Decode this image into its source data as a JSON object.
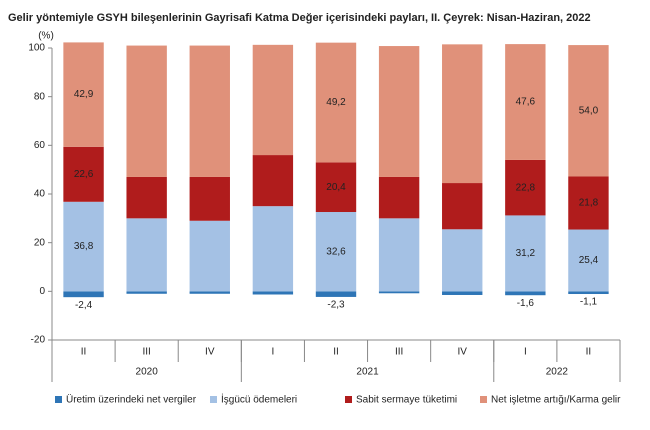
{
  "chart_data": {
    "type": "stacked_bar",
    "title": "Gelir yöntemiyle GSYH bileşenlerinin Gayrisafi Katma Değer içerisindeki payları, II. Çeyrek: Nisan-Haziran, 2022",
    "y_unit_label": "(%)",
    "categories": [
      "II",
      "III",
      "IV",
      "I",
      "II",
      "III",
      "IV",
      "I",
      "II"
    ],
    "category_groups": [
      {
        "label": "2020",
        "size": 3
      },
      {
        "label": "2021",
        "size": 4
      },
      {
        "label": "2022",
        "size": 2
      }
    ],
    "series": [
      {
        "name": "Üretim üzerindeki net vergiler",
        "color": "#2e75b6",
        "values": [
          -2.4,
          -1.0,
          -1.0,
          -1.3,
          -2.3,
          -0.8,
          -1.5,
          -1.6,
          -1.1
        ],
        "value_labels": [
          "-2,4",
          null,
          null,
          null,
          "-2,3",
          null,
          null,
          "-1,6",
          "-1,1"
        ]
      },
      {
        "name": "İşgücü ödemeleri",
        "color": "#a4c1e4",
        "values": [
          36.8,
          30.0,
          29.0,
          35.0,
          32.6,
          30.0,
          25.5,
          31.2,
          25.4
        ],
        "value_labels": [
          "36,8",
          null,
          null,
          null,
          "32,6",
          null,
          null,
          "31,2",
          "25,4"
        ]
      },
      {
        "name": "Sabit sermaye tüketimi",
        "color": "#b01c1c",
        "values": [
          22.6,
          17.0,
          18.0,
          21.0,
          20.4,
          17.0,
          19.0,
          22.8,
          21.8
        ],
        "value_labels": [
          "22,6",
          null,
          null,
          null,
          "20,4",
          null,
          null,
          "22,8",
          "21,8"
        ]
      },
      {
        "name": "Net işletme artığı/Karma gelir",
        "color": "#e0917a",
        "values": [
          42.9,
          54.0,
          54.0,
          45.3,
          49.2,
          53.8,
          57.0,
          47.6,
          54.0
        ],
        "value_labels": [
          "42,9",
          null,
          null,
          null,
          "49,2",
          null,
          null,
          "47,6",
          "54,0"
        ]
      }
    ],
    "ylim": [
      -20,
      100
    ],
    "yticks": [
      -20,
      0,
      20,
      40,
      60,
      80,
      100
    ],
    "grid": false
  }
}
